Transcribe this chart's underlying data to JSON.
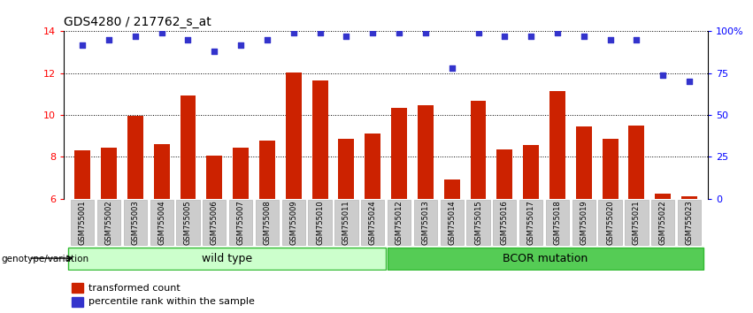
{
  "title": "GDS4280 / 217762_s_at",
  "samples": [
    "GSM755001",
    "GSM755002",
    "GSM755003",
    "GSM755004",
    "GSM755005",
    "GSM755006",
    "GSM755007",
    "GSM755008",
    "GSM755009",
    "GSM755010",
    "GSM755011",
    "GSM755024",
    "GSM755012",
    "GSM755013",
    "GSM755014",
    "GSM755015",
    "GSM755016",
    "GSM755017",
    "GSM755018",
    "GSM755019",
    "GSM755020",
    "GSM755021",
    "GSM755022",
    "GSM755023"
  ],
  "bar_values": [
    8.3,
    8.45,
    9.95,
    8.6,
    10.95,
    8.05,
    8.45,
    8.8,
    12.05,
    11.65,
    8.85,
    9.1,
    10.35,
    10.45,
    6.9,
    10.7,
    8.35,
    8.55,
    11.15,
    9.45,
    8.85,
    9.5,
    6.25,
    6.1
  ],
  "dot_values_pct": [
    92,
    95,
    97,
    99,
    95,
    88,
    92,
    95,
    99,
    99,
    97,
    99,
    99,
    99,
    78,
    99,
    97,
    97,
    99,
    97,
    95,
    95,
    74,
    70
  ],
  "bar_color": "#cc2200",
  "dot_color": "#3333cc",
  "ylim_left": [
    6,
    14
  ],
  "ylim_right": [
    0,
    100
  ],
  "yticks_left": [
    6,
    8,
    10,
    12,
    14
  ],
  "yticks_right": [
    0,
    25,
    50,
    75,
    100
  ],
  "wild_type_count": 12,
  "bcor_count": 12,
  "group_label_wt": "wild type",
  "group_label_bcor": "BCOR mutation",
  "group_color_wt": "#ccffcc",
  "group_color_bcor": "#55cc55",
  "legend_bar_label": "transformed count",
  "legend_dot_label": "percentile rank within the sample",
  "xlabel_group": "genotype/variation",
  "background_color": "#ffffff"
}
